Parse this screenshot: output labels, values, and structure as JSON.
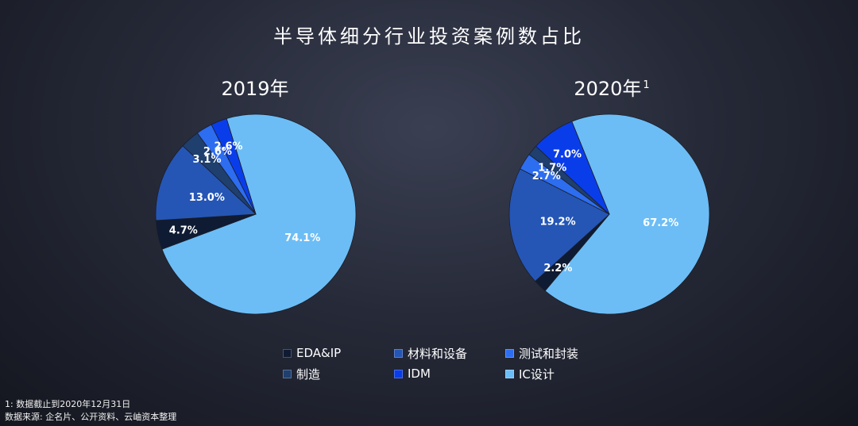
{
  "title": "半导体细分行业投资案例数占比",
  "chart_data": [
    {
      "type": "pie",
      "title": "2019年",
      "title_sup": "",
      "slices": [
        {
          "label": "IC设计",
          "value": 74.1,
          "display": "74.1%",
          "color": "#6cbdf5"
        },
        {
          "label": "EDA&IP",
          "value": 4.7,
          "display": "4.7%",
          "color": "#0e1b33"
        },
        {
          "label": "材料和设备",
          "value": 13.0,
          "display": "13.0%",
          "color": "#2556b5"
        },
        {
          "label": "制造",
          "value": 3.1,
          "display": "3.1%",
          "color": "#1f3f6e"
        },
        {
          "label": "测试和封装",
          "value": 2.6,
          "display": "2.6%",
          "color": "#2d6df0"
        },
        {
          "label": "IDM",
          "value": 2.6,
          "display": "2.6%",
          "color": "#0a3dea"
        }
      ]
    },
    {
      "type": "pie",
      "title": "2020年",
      "title_sup": "1",
      "slices": [
        {
          "label": "IC设计",
          "value": 67.2,
          "display": "67.2%",
          "color": "#6cbdf5"
        },
        {
          "label": "EDA&IP",
          "value": 2.2,
          "display": "2.2%",
          "color": "#0e1b33"
        },
        {
          "label": "材料和设备",
          "value": 19.2,
          "display": "19.2%",
          "color": "#2556b5"
        },
        {
          "label": "测试和封装",
          "value": 2.7,
          "display": "2.7%",
          "color": "#2d6df0"
        },
        {
          "label": "制造",
          "value": 1.7,
          "display": "1.7%",
          "color": "#1f3f6e"
        },
        {
          "label": "IDM",
          "value": 7.0,
          "display": "7.0%",
          "color": "#0a3dea"
        }
      ]
    }
  ],
  "legend": [
    {
      "label": "EDA&IP",
      "color": "#0e1b33"
    },
    {
      "label": "材料和设备",
      "color": "#2556b5"
    },
    {
      "label": "测试和封装",
      "color": "#2d6df0"
    },
    {
      "label": "制造",
      "color": "#1f3f6e"
    },
    {
      "label": "IDM",
      "color": "#0a3dea"
    },
    {
      "label": "IC设计",
      "color": "#6cbdf5"
    }
  ],
  "footnotes": {
    "note1": "1: 数据截止到2020年12月31日",
    "source": "数据来源: 企名片、公开资料、云岫资本整理"
  }
}
